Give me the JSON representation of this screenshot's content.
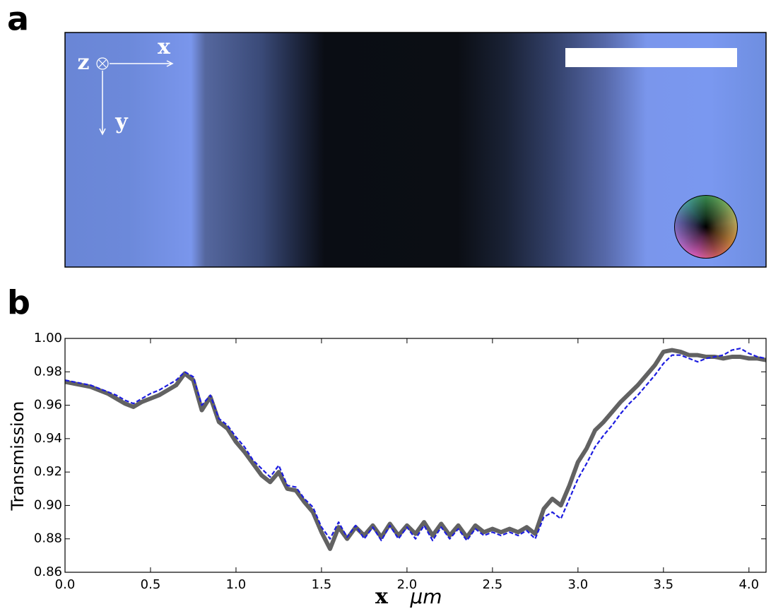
{
  "panel_a": {
    "label": "a",
    "axis_labels": {
      "x": "x",
      "y": "y",
      "z": "z"
    }
  },
  "chart_data": {
    "type": "line",
    "panel_label": "b",
    "ylabel": "Transmission",
    "xlabel": "x",
    "xunit": "μm",
    "x": [
      0,
      0.05,
      0.1,
      0.15,
      0.2,
      0.25,
      0.3,
      0.35,
      0.4,
      0.45,
      0.5,
      0.55,
      0.6,
      0.65,
      0.7,
      0.75,
      0.8,
      0.85,
      0.9,
      0.95,
      1.0,
      1.05,
      1.1,
      1.15,
      1.2,
      1.25,
      1.3,
      1.35,
      1.4,
      1.45,
      1.5,
      1.55,
      1.6,
      1.65,
      1.7,
      1.75,
      1.8,
      1.85,
      1.9,
      1.95,
      2.0,
      2.05,
      2.1,
      2.15,
      2.2,
      2.25,
      2.3,
      2.35,
      2.4,
      2.45,
      2.5,
      2.55,
      2.6,
      2.65,
      2.7,
      2.75,
      2.8,
      2.85,
      2.9,
      2.95,
      3.0,
      3.05,
      3.1,
      3.15,
      3.2,
      3.25,
      3.3,
      3.35,
      3.4,
      3.45,
      3.5,
      3.55,
      3.6,
      3.65,
      3.7,
      3.75,
      3.8,
      3.85,
      3.9,
      3.95,
      4.0,
      4.05,
      4.1
    ],
    "series": [
      {
        "color": "#626262",
        "style": "solid",
        "values": [
          0.974,
          0.973,
          0.972,
          0.971,
          0.969,
          0.967,
          0.964,
          0.961,
          0.959,
          0.962,
          0.964,
          0.966,
          0.969,
          0.972,
          0.979,
          0.975,
          0.957,
          0.965,
          0.95,
          0.946,
          0.938,
          0.932,
          0.925,
          0.918,
          0.914,
          0.92,
          0.91,
          0.909,
          0.902,
          0.896,
          0.884,
          0.874,
          0.887,
          0.88,
          0.887,
          0.882,
          0.888,
          0.881,
          0.889,
          0.882,
          0.888,
          0.883,
          0.89,
          0.882,
          0.889,
          0.882,
          0.888,
          0.881,
          0.888,
          0.884,
          0.886,
          0.884,
          0.886,
          0.884,
          0.887,
          0.883,
          0.898,
          0.904,
          0.9,
          0.912,
          0.926,
          0.934,
          0.945,
          0.95,
          0.956,
          0.962,
          0.967,
          0.972,
          0.978,
          0.984,
          0.992,
          0.993,
          0.992,
          0.99,
          0.99,
          0.989,
          0.989,
          0.988,
          0.989,
          0.989,
          0.988,
          0.988,
          0.987
        ]
      },
      {
        "color": "#1c1ce0",
        "style": "dashed",
        "values": [
          0.975,
          0.974,
          0.973,
          0.972,
          0.97,
          0.968,
          0.966,
          0.963,
          0.961,
          0.964,
          0.967,
          0.969,
          0.972,
          0.975,
          0.98,
          0.977,
          0.96,
          0.966,
          0.952,
          0.948,
          0.941,
          0.935,
          0.927,
          0.922,
          0.917,
          0.924,
          0.912,
          0.911,
          0.904,
          0.899,
          0.887,
          0.88,
          0.89,
          0.881,
          0.888,
          0.88,
          0.887,
          0.879,
          0.888,
          0.88,
          0.887,
          0.88,
          0.888,
          0.879,
          0.887,
          0.88,
          0.886,
          0.879,
          0.886,
          0.882,
          0.884,
          0.882,
          0.884,
          0.882,
          0.885,
          0.88,
          0.893,
          0.896,
          0.892,
          0.904,
          0.916,
          0.925,
          0.935,
          0.942,
          0.948,
          0.955,
          0.961,
          0.966,
          0.972,
          0.978,
          0.985,
          0.99,
          0.99,
          0.988,
          0.986,
          0.988,
          0.989,
          0.99,
          0.993,
          0.994,
          0.991,
          0.989,
          0.988
        ]
      }
    ],
    "xlim": [
      0,
      4.1
    ],
    "ylim": [
      0.86,
      1.0
    ],
    "xticks": [
      {
        "value": 0,
        "label": "0.0"
      },
      0.5,
      {
        "value": 1,
        "label": "1.0"
      },
      1.5,
      {
        "value": 2,
        "label": "2.0"
      },
      2.5,
      {
        "value": 3,
        "label": "3.0"
      },
      3.5,
      {
        "value": 4,
        "label": "4.0"
      }
    ],
    "yticks": [
      0.86,
      0.88,
      {
        "value": 0.9,
        "label": "0.90"
      },
      0.92,
      0.94,
      0.96,
      0.98,
      {
        "value": 1.0,
        "label": "1.00"
      }
    ]
  }
}
